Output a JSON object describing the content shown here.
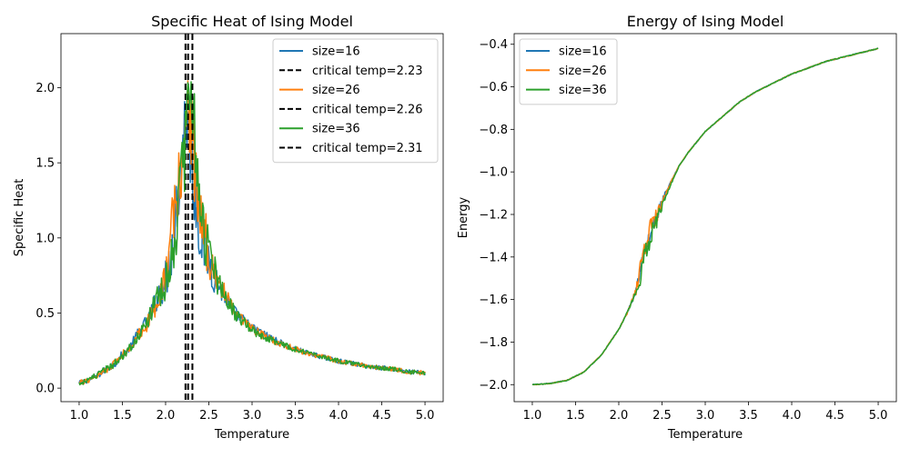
{
  "chart_data": [
    {
      "type": "line",
      "title": "Specific Heat of Ising Model",
      "xlabel": "Temperature",
      "ylabel": "Specific Heat",
      "xlim": [
        0.79,
        5.21
      ],
      "ylim": [
        -0.09,
        2.36
      ],
      "xticks": [
        1.0,
        1.5,
        2.0,
        2.5,
        3.0,
        3.5,
        4.0,
        4.5,
        5.0
      ],
      "xtick_labels": [
        "1.0",
        "1.5",
        "2.0",
        "2.5",
        "3.0",
        "3.5",
        "4.0",
        "4.5",
        "5.0"
      ],
      "yticks": [
        0.0,
        0.5,
        1.0,
        1.5,
        2.0
      ],
      "ytick_labels": [
        "0.0",
        "0.5",
        "1.0",
        "1.5",
        "2.0"
      ],
      "grid": false,
      "legend_position": "upper right",
      "series": [
        {
          "name": "size=16",
          "color": "#1f77b4",
          "x": [
            1.0,
            1.2,
            1.4,
            1.6,
            1.7,
            1.8,
            1.9,
            2.0,
            2.05,
            2.1,
            2.15,
            2.2,
            2.23,
            2.26,
            2.3,
            2.35,
            2.4,
            2.5,
            2.6,
            2.7,
            2.8,
            2.9,
            3.0,
            3.2,
            3.4,
            3.6,
            3.8,
            4.0,
            4.2,
            4.4,
            4.6,
            4.8,
            5.0
          ],
          "values": [
            0.03,
            0.08,
            0.16,
            0.28,
            0.38,
            0.45,
            0.6,
            0.72,
            0.85,
            1.05,
            1.35,
            1.65,
            1.85,
            1.75,
            1.5,
            1.25,
            1.05,
            0.85,
            0.7,
            0.6,
            0.5,
            0.45,
            0.4,
            0.34,
            0.28,
            0.24,
            0.21,
            0.18,
            0.16,
            0.14,
            0.13,
            0.11,
            0.1
          ]
        },
        {
          "name": "critical temp=2.23",
          "color": "#000000",
          "dashed": true,
          "vline_x": 2.23
        },
        {
          "name": "size=26",
          "color": "#ff7f0e",
          "x": [
            1.0,
            1.2,
            1.4,
            1.6,
            1.7,
            1.8,
            1.9,
            2.0,
            2.05,
            2.1,
            2.15,
            2.2,
            2.23,
            2.26,
            2.3,
            2.35,
            2.4,
            2.5,
            2.6,
            2.7,
            2.8,
            2.9,
            3.0,
            3.2,
            3.4,
            3.6,
            3.8,
            4.0,
            4.2,
            4.4,
            4.6,
            4.8,
            5.0
          ],
          "values": [
            0.03,
            0.08,
            0.16,
            0.28,
            0.37,
            0.44,
            0.58,
            0.75,
            0.95,
            1.2,
            1.35,
            1.5,
            1.7,
            1.9,
            1.7,
            1.4,
            1.15,
            0.9,
            0.72,
            0.6,
            0.5,
            0.44,
            0.39,
            0.33,
            0.28,
            0.24,
            0.21,
            0.18,
            0.16,
            0.14,
            0.13,
            0.11,
            0.1
          ]
        },
        {
          "name": "critical temp=2.26",
          "color": "#000000",
          "dashed": true,
          "vline_x": 2.26
        },
        {
          "name": "size=36",
          "color": "#2ca02c",
          "x": [
            1.0,
            1.2,
            1.4,
            1.6,
            1.7,
            1.8,
            1.9,
            2.0,
            2.05,
            2.1,
            2.15,
            2.2,
            2.23,
            2.26,
            2.3,
            2.35,
            2.4,
            2.5,
            2.6,
            2.7,
            2.8,
            2.9,
            3.0,
            3.2,
            3.4,
            3.6,
            3.8,
            4.0,
            4.2,
            4.4,
            4.6,
            4.8,
            5.0
          ],
          "values": [
            0.03,
            0.08,
            0.16,
            0.28,
            0.36,
            0.45,
            0.6,
            0.72,
            0.85,
            1.0,
            1.2,
            1.45,
            1.6,
            1.8,
            2.1,
            1.55,
            1.2,
            0.9,
            0.72,
            0.6,
            0.5,
            0.44,
            0.38,
            0.33,
            0.28,
            0.24,
            0.21,
            0.18,
            0.16,
            0.14,
            0.13,
            0.11,
            0.1
          ]
        },
        {
          "name": "critical temp=2.31",
          "color": "#000000",
          "dashed": true,
          "vline_x": 2.31
        }
      ]
    },
    {
      "type": "line",
      "title": "Energy of Ising Model",
      "xlabel": "Temperature",
      "ylabel": "Energy",
      "xlim": [
        0.79,
        5.21
      ],
      "ylim": [
        -2.08,
        -0.35
      ],
      "xticks": [
        1.0,
        1.5,
        2.0,
        2.5,
        3.0,
        3.5,
        4.0,
        4.5,
        5.0
      ],
      "xtick_labels": [
        "1.0",
        "1.5",
        "2.0",
        "2.5",
        "3.0",
        "3.5",
        "4.0",
        "4.5",
        "5.0"
      ],
      "yticks": [
        -2.0,
        -1.8,
        -1.6,
        -1.4,
        -1.2,
        -1.0,
        -0.8,
        -0.6,
        -0.4
      ],
      "ytick_labels": [
        "−2.0",
        "−1.8",
        "−1.6",
        "−1.4",
        "−1.2",
        "−1.0",
        "−0.8",
        "−0.6",
        "−0.4"
      ],
      "grid": false,
      "legend_position": "upper left",
      "series": [
        {
          "name": "size=16",
          "color": "#1f77b4",
          "x": [
            1.0,
            1.2,
            1.4,
            1.6,
            1.8,
            2.0,
            2.1,
            2.2,
            2.25,
            2.3,
            2.35,
            2.4,
            2.45,
            2.5,
            2.6,
            2.7,
            2.8,
            3.0,
            3.2,
            3.4,
            3.6,
            3.8,
            4.0,
            4.2,
            4.4,
            4.6,
            4.8,
            5.0
          ],
          "values": [
            -2.0,
            -1.995,
            -1.98,
            -1.94,
            -1.86,
            -1.74,
            -1.66,
            -1.55,
            -1.45,
            -1.38,
            -1.32,
            -1.25,
            -1.2,
            -1.14,
            -1.05,
            -0.97,
            -0.91,
            -0.81,
            -0.74,
            -0.67,
            -0.62,
            -0.58,
            -0.54,
            -0.51,
            -0.48,
            -0.46,
            -0.44,
            -0.42
          ]
        },
        {
          "name": "size=26",
          "color": "#ff7f0e",
          "x": [
            1.0,
            1.2,
            1.4,
            1.6,
            1.8,
            2.0,
            2.1,
            2.2,
            2.25,
            2.3,
            2.35,
            2.4,
            2.45,
            2.5,
            2.6,
            2.7,
            2.8,
            3.0,
            3.2,
            3.4,
            3.6,
            3.8,
            4.0,
            4.2,
            4.4,
            4.6,
            4.8,
            5.0
          ],
          "values": [
            -2.0,
            -1.995,
            -1.98,
            -1.94,
            -1.86,
            -1.74,
            -1.66,
            -1.56,
            -1.44,
            -1.36,
            -1.28,
            -1.22,
            -1.2,
            -1.15,
            -1.05,
            -0.97,
            -0.91,
            -0.81,
            -0.74,
            -0.67,
            -0.62,
            -0.58,
            -0.54,
            -0.51,
            -0.48,
            -0.46,
            -0.44,
            -0.42
          ]
        },
        {
          "name": "size=36",
          "color": "#2ca02c",
          "x": [
            1.0,
            1.2,
            1.4,
            1.6,
            1.8,
            2.0,
            2.1,
            2.2,
            2.25,
            2.3,
            2.35,
            2.4,
            2.45,
            2.5,
            2.6,
            2.7,
            2.8,
            3.0,
            3.2,
            3.4,
            3.6,
            3.8,
            4.0,
            4.2,
            4.4,
            4.6,
            4.8,
            5.0
          ],
          "values": [
            -2.0,
            -1.995,
            -1.98,
            -1.94,
            -1.86,
            -1.74,
            -1.66,
            -1.57,
            -1.5,
            -1.4,
            -1.32,
            -1.26,
            -1.22,
            -1.16,
            -1.06,
            -0.97,
            -0.91,
            -0.81,
            -0.74,
            -0.67,
            -0.62,
            -0.58,
            -0.54,
            -0.51,
            -0.48,
            -0.46,
            -0.44,
            -0.42
          ]
        }
      ]
    }
  ]
}
